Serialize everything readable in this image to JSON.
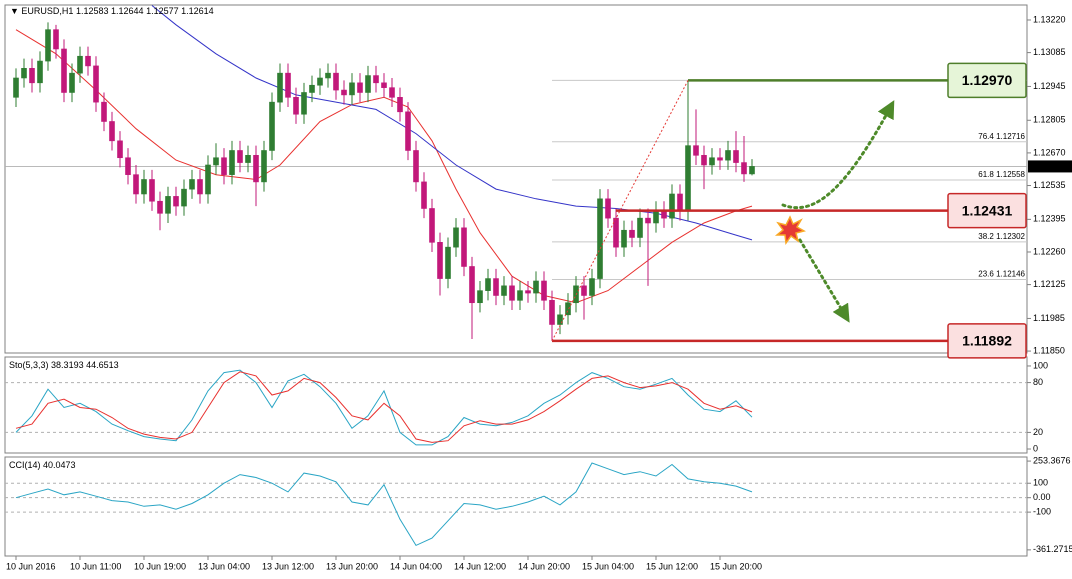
{
  "chart_data": {
    "type": "candlestick",
    "title": "EURUSD,H1",
    "up_color": "#2f7d32",
    "down_color": "#c2187a",
    "categories": [
      "10 Jun 2016",
      null,
      null,
      null,
      null,
      null,
      null,
      null,
      "10 Jun 11:00",
      null,
      null,
      null,
      null,
      null,
      null,
      null,
      "10 Jun 19:00",
      null,
      null,
      null,
      null,
      null,
      null,
      null,
      "13 Jun 04:00",
      null,
      null,
      null,
      null,
      null,
      null,
      null,
      "13 Jun 12:00",
      null,
      null,
      null,
      null,
      null,
      null,
      null,
      "13 Jun 20:00",
      null,
      null,
      null,
      null,
      null,
      null,
      null,
      "14 Jun 04:00",
      null,
      null,
      null,
      null,
      null,
      null,
      null,
      "14 Jun 12:00",
      null,
      null,
      null,
      null,
      null,
      null,
      null,
      "14 Jun 20:00",
      null,
      null,
      null,
      null,
      null,
      null,
      null,
      "15 Jun 04:00",
      null,
      null,
      null,
      null,
      null,
      null,
      null,
      "15 Jun 12:00",
      null,
      null,
      null,
      null,
      null,
      null,
      null,
      "15 Jun 20:00",
      null,
      null,
      null,
      null
    ],
    "candles": [
      [
        1.129,
        1.1302,
        1.1286,
        1.1298
      ],
      [
        1.1298,
        1.1306,
        1.1294,
        1.1302
      ],
      [
        1.1302,
        1.1306,
        1.1292,
        1.1296
      ],
      [
        1.1296,
        1.1309,
        1.1292,
        1.1305
      ],
      [
        1.1305,
        1.1321,
        1.1301,
        1.1318
      ],
      [
        1.1318,
        1.132,
        1.1306,
        1.131
      ],
      [
        1.131,
        1.1314,
        1.1288,
        1.1292
      ],
      [
        1.1292,
        1.1304,
        1.1288,
        1.13
      ],
      [
        1.13,
        1.1311,
        1.1296,
        1.1307
      ],
      [
        1.1307,
        1.1311,
        1.1299,
        1.1303
      ],
      [
        1.1303,
        1.1307,
        1.1284,
        1.1288
      ],
      [
        1.1288,
        1.1292,
        1.1276,
        1.128
      ],
      [
        1.128,
        1.1284,
        1.1268,
        1.1272
      ],
      [
        1.1272,
        1.1276,
        1.1261,
        1.1265
      ],
      [
        1.1265,
        1.1269,
        1.1254,
        1.1258
      ],
      [
        1.1258,
        1.1262,
        1.1246,
        1.125
      ],
      [
        1.125,
        1.126,
        1.1246,
        1.1256
      ],
      [
        1.1256,
        1.126,
        1.1243,
        1.1247
      ],
      [
        1.1247,
        1.1251,
        1.1235,
        1.1242
      ],
      [
        1.1242,
        1.1253,
        1.1238,
        1.1249
      ],
      [
        1.1249,
        1.1253,
        1.1241,
        1.1245
      ],
      [
        1.1245,
        1.1256,
        1.1241,
        1.1252
      ],
      [
        1.1252,
        1.126,
        1.1248,
        1.1256
      ],
      [
        1.1256,
        1.126,
        1.1246,
        1.125
      ],
      [
        1.125,
        1.1266,
        1.1246,
        1.1262
      ],
      [
        1.1262,
        1.1271,
        1.1258,
        1.1265
      ],
      [
        1.1265,
        1.1269,
        1.1254,
        1.1258
      ],
      [
        1.1258,
        1.1272,
        1.1254,
        1.1268
      ],
      [
        1.1268,
        1.1272,
        1.1259,
        1.1263
      ],
      [
        1.1263,
        1.127,
        1.1259,
        1.1266
      ],
      [
        1.1266,
        1.127,
        1.1245,
        1.1255
      ],
      [
        1.1255,
        1.1272,
        1.1251,
        1.1268
      ],
      [
        1.1268,
        1.1292,
        1.1264,
        1.1288
      ],
      [
        1.1288,
        1.1304,
        1.1284,
        1.13
      ],
      [
        1.13,
        1.1304,
        1.1286,
        1.129
      ],
      [
        1.129,
        1.1294,
        1.1279,
        1.1283
      ],
      [
        1.1283,
        1.1296,
        1.1279,
        1.1292
      ],
      [
        1.1292,
        1.1299,
        1.1288,
        1.1295
      ],
      [
        1.1295,
        1.1302,
        1.1291,
        1.1298
      ],
      [
        1.1298,
        1.1304,
        1.1294,
        1.13
      ],
      [
        1.13,
        1.1304,
        1.1289,
        1.1293
      ],
      [
        1.1293,
        1.1297,
        1.1287,
        1.1291
      ],
      [
        1.1291,
        1.13,
        1.1287,
        1.1296
      ],
      [
        1.1296,
        1.13,
        1.1288,
        1.1292
      ],
      [
        1.1292,
        1.1303,
        1.1288,
        1.1299
      ],
      [
        1.1299,
        1.1303,
        1.1292,
        1.1296
      ],
      [
        1.1296,
        1.13,
        1.129,
        1.1294
      ],
      [
        1.1294,
        1.1298,
        1.1286,
        1.129
      ],
      [
        1.129,
        1.1294,
        1.128,
        1.1284
      ],
      [
        1.1284,
        1.1288,
        1.1264,
        1.1268
      ],
      [
        1.1268,
        1.1272,
        1.1251,
        1.1255
      ],
      [
        1.1255,
        1.1259,
        1.124,
        1.1244
      ],
      [
        1.1244,
        1.1248,
        1.1226,
        1.123
      ],
      [
        1.123,
        1.1234,
        1.1208,
        1.1215
      ],
      [
        1.1215,
        1.1232,
        1.1211,
        1.1228
      ],
      [
        1.1228,
        1.124,
        1.1224,
        1.1236
      ],
      [
        1.1236,
        1.124,
        1.1216,
        1.122
      ],
      [
        1.122,
        1.1224,
        1.119,
        1.1205
      ],
      [
        1.1205,
        1.1214,
        1.1201,
        1.121
      ],
      [
        1.121,
        1.1219,
        1.1206,
        1.1215
      ],
      [
        1.1215,
        1.1219,
        1.1204,
        1.1208
      ],
      [
        1.1208,
        1.1216,
        1.1204,
        1.1212
      ],
      [
        1.1212,
        1.1216,
        1.1202,
        1.1206
      ],
      [
        1.1206,
        1.1214,
        1.1202,
        1.121
      ],
      [
        1.121,
        1.1214,
        1.1205,
        1.1209
      ],
      [
        1.1209,
        1.1218,
        1.1205,
        1.1214
      ],
      [
        1.1214,
        1.1218,
        1.1202,
        1.1206
      ],
      [
        1.1206,
        1.121,
        1.11892,
        1.1196
      ],
      [
        1.1196,
        1.1204,
        1.1192,
        1.12
      ],
      [
        1.12,
        1.1209,
        1.1196,
        1.1205
      ],
      [
        1.1205,
        1.1216,
        1.1201,
        1.1212
      ],
      [
        1.1212,
        1.1216,
        1.1198,
        1.1208
      ],
      [
        1.1208,
        1.1219,
        1.1204,
        1.1215
      ],
      [
        1.1215,
        1.1252,
        1.1211,
        1.1248
      ],
      [
        1.1248,
        1.1252,
        1.1236,
        1.124
      ],
      [
        1.124,
        1.1244,
        1.1224,
        1.1228
      ],
      [
        1.1228,
        1.1239,
        1.1224,
        1.1235
      ],
      [
        1.1235,
        1.1239,
        1.1228,
        1.1232
      ],
      [
        1.1232,
        1.1244,
        1.1228,
        1.124
      ],
      [
        1.124,
        1.1244,
        1.1212,
        1.1238
      ],
      [
        1.1238,
        1.1247,
        1.1234,
        1.1243
      ],
      [
        1.1243,
        1.1247,
        1.1236,
        1.124
      ],
      [
        1.124,
        1.1254,
        1.1236,
        1.125
      ],
      [
        1.125,
        1.1254,
        1.1239,
        1.1243
      ],
      [
        1.1243,
        1.1297,
        1.1239,
        1.127
      ],
      [
        1.127,
        1.1285,
        1.1262,
        1.1266
      ],
      [
        1.1266,
        1.127,
        1.1252,
        1.1262
      ],
      [
        1.1262,
        1.1269,
        1.1258,
        1.1265
      ],
      [
        1.1265,
        1.1269,
        1.126,
        1.1264
      ],
      [
        1.1264,
        1.1272,
        1.126,
        1.1268
      ],
      [
        1.1268,
        1.1276,
        1.1259,
        1.1263
      ],
      [
        1.1263,
        1.1274,
        1.1255,
        1.12583
      ],
      [
        1.12583,
        1.12644,
        1.12577,
        1.12614
      ]
    ],
    "moving_averages": [
      {
        "color": "#e8312f",
        "x": [
          0,
          5,
          10,
          15,
          20,
          25,
          30,
          33,
          38,
          42,
          46,
          49,
          52,
          55,
          58,
          62,
          66,
          70,
          74,
          78,
          82,
          86,
          90,
          92
        ],
        "values": [
          1.1318,
          1.1308,
          1.1293,
          1.1277,
          1.1264,
          1.1258,
          1.1256,
          1.1262,
          1.128,
          1.1287,
          1.129,
          1.1286,
          1.1272,
          1.1252,
          1.1234,
          1.1216,
          1.1208,
          1.1205,
          1.121,
          1.122,
          1.123,
          1.1238,
          1.1243,
          1.1245
        ]
      },
      {
        "color": "#3434c8",
        "x": [
          17,
          20,
          25,
          30,
          35,
          40,
          45,
          50,
          55,
          60,
          65,
          70,
          75,
          80,
          85,
          90,
          92
        ],
        "values": [
          1.1328,
          1.132,
          1.1308,
          1.1298,
          1.1291,
          1.1288,
          1.1285,
          1.1275,
          1.1262,
          1.1252,
          1.1248,
          1.1245,
          1.1244,
          1.1242,
          1.1238,
          1.1233,
          1.1231
        ]
      }
    ],
    "ylim": [
      1.11842,
      1.13282
    ],
    "yticks": [
      {
        "value": 1.1322,
        "label": "1.13220"
      },
      {
        "value": 1.13085,
        "label": "1.13085"
      },
      {
        "value": 1.12945,
        "label": "1.12945"
      },
      {
        "value": 1.12805,
        "label": "1.12805"
      },
      {
        "value": 1.1267,
        "label": "1.12670"
      },
      {
        "value": 1.12535,
        "label": "1.12535"
      },
      {
        "value": 1.12395,
        "label": "1.12395"
      },
      {
        "value": 1.1226,
        "label": "1.12260"
      },
      {
        "value": 1.12125,
        "label": "1.12125"
      },
      {
        "value": 1.11985,
        "label": "1.11985"
      },
      {
        "value": 1.1185,
        "label": "1.11850"
      }
    ],
    "fib_levels": [
      {
        "value": 1.12716,
        "label": "76.4  1.12716"
      },
      {
        "value": 1.12558,
        "label": "61.8  1.12558"
      },
      {
        "value": 1.12302,
        "label": "38.2  1.12302"
      },
      {
        "value": 1.12146,
        "label": "23.6  1.12146"
      }
    ],
    "annotations": [
      {
        "value": 1.1297,
        "label": "1.12970",
        "color": "#4e7e2a",
        "fill": "#e6f5d8"
      },
      {
        "value": 1.12431,
        "color": "#c62828",
        "fill": "#fbe0e0"
      },
      {
        "value": 1.11892,
        "color": "#c62828",
        "fill": "#fbe0e0"
      }
    ],
    "indicators": [
      {
        "title": "Sto(5,3,3)",
        "ylim": [
          -4.8,
          110.8
        ],
        "yticks": [
          100,
          80,
          20,
          0
        ],
        "x": [
          0,
          2,
          4,
          6,
          8,
          10,
          12,
          14,
          16,
          18,
          20,
          22,
          24,
          26,
          28,
          30,
          32,
          34,
          36,
          38,
          40,
          42,
          44,
          46,
          48,
          50,
          52,
          54,
          56,
          58,
          60,
          62,
          64,
          66,
          68,
          70,
          72,
          74,
          76,
          78,
          80,
          82,
          84,
          86,
          88,
          90,
          92
        ],
        "series": [
          {
            "color": "#2aa5c5",
            "values": [
              20,
              40,
              72,
              50,
              55,
              45,
              30,
              22,
              15,
              12,
              10,
              35,
              70,
              92,
              95,
              80,
              50,
              82,
              90,
              75,
              55,
              25,
              40,
              70,
              20,
              5,
              5,
              15,
              38,
              30,
              28,
              32,
              40,
              55,
              65,
              80,
              92,
              85,
              75,
              72,
              78,
              85,
              65,
              48,
              45,
              58,
              38.3193
            ]
          },
          {
            "color": "#e8312f",
            "values": [
              25,
              30,
              55,
              60,
              50,
              48,
              38,
              25,
              18,
              14,
              12,
              20,
              50,
              80,
              93,
              88,
              65,
              70,
              85,
              80,
              62,
              40,
              35,
              55,
              40,
              12,
              8,
              10,
              28,
              34,
              30,
              30,
              35,
              45,
              58,
              72,
              85,
              88,
              80,
              74,
              76,
              80,
              72,
              55,
              48,
              52,
              44.6513
            ]
          }
        ]
      },
      {
        "title": "CCI(14)",
        "ylim": [
          -403.7,
          281.6
        ],
        "yticks": [
          253.3676,
          100,
          {
            "value": 0,
            "label": "0.00"
          },
          -100,
          -361.2715
        ],
        "x": [
          0,
          2,
          4,
          6,
          8,
          10,
          12,
          14,
          16,
          18,
          20,
          22,
          24,
          26,
          28,
          30,
          32,
          34,
          36,
          38,
          40,
          42,
          44,
          46,
          48,
          50,
          52,
          54,
          56,
          58,
          60,
          62,
          64,
          66,
          68,
          70,
          72,
          74,
          76,
          78,
          80,
          82,
          84,
          86,
          88,
          90,
          92
        ],
        "series": [
          {
            "color": "#2aa5c5",
            "values": [
              0,
              30,
              60,
              20,
              40,
              10,
              -20,
              -30,
              -60,
              -50,
              -80,
              -40,
              20,
              100,
              160,
              140,
              100,
              40,
              170,
              150,
              110,
              -30,
              -50,
              90,
              -150,
              -330,
              -280,
              -160,
              -40,
              -50,
              -80,
              -60,
              -30,
              10,
              -50,
              40,
              240,
              200,
              160,
              180,
              150,
              230,
              130,
              110,
              100,
              80,
              40.0473
            ]
          }
        ]
      }
    ]
  }
}
